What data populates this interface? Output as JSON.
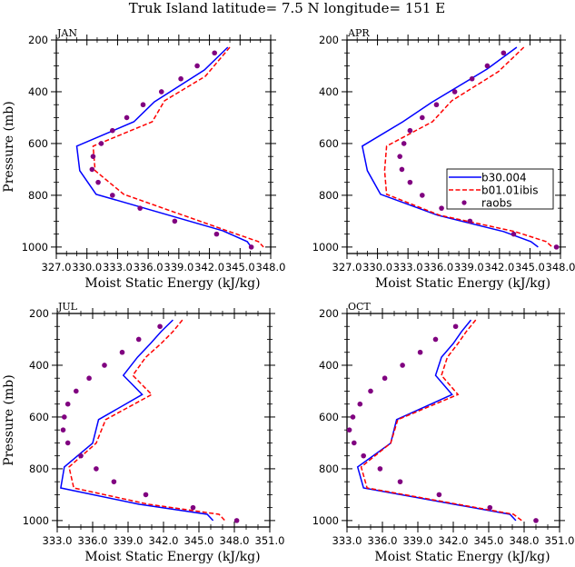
{
  "title": "Truk Island  latitude= 7.5 N longitude= 151 E",
  "colors": {
    "b30": "#0000ff",
    "b01": "#ff0000",
    "raobs": "#800080",
    "axis": "#000000"
  },
  "legend": {
    "placement": "right-middle of APR panel",
    "entries": [
      {
        "label": "b30.004",
        "style": "solid-line",
        "color": "#0000ff"
      },
      {
        "label": "b01.01ibis",
        "style": "dashed-line",
        "color": "#ff0000"
      },
      {
        "label": "raobs",
        "style": "dot",
        "color": "#800080"
      }
    ]
  },
  "chart_data": [
    {
      "type": "line",
      "panel": "JAN",
      "title": "JAN",
      "xlabel": "Moist Static Energy (kJ/kg)",
      "ylabel": "Pressure (mb)",
      "xlim": [
        327.0,
        348.0
      ],
      "xticks": [
        327.0,
        330.0,
        333.0,
        336.0,
        339.0,
        342.0,
        345.0,
        348.0
      ],
      "xtick_labels": [
        "327.0",
        "330.0",
        "333.0",
        "336.0",
        "339.0",
        "342.0",
        "345.0",
        "348.0"
      ],
      "ylim": [
        1025,
        200
      ],
      "yticks": [
        200,
        400,
        600,
        800,
        1000
      ],
      "ytick_labels": [
        "200",
        "400",
        "600",
        "800",
        "1000"
      ],
      "y_inverted": true,
      "series": [
        {
          "name": "b30.004",
          "style": "solid",
          "color": "#0000ff",
          "p": [
            228,
            316,
            439,
            516,
            610,
            705,
            796,
            937,
            979,
            1000
          ],
          "mse": [
            343.8,
            341.5,
            336.6,
            334.6,
            329.0,
            329.3,
            330.9,
            343.3,
            345.7,
            346.1
          ]
        },
        {
          "name": "b01.01ibis",
          "style": "dashed",
          "color": "#ff0000",
          "p": [
            228,
            340,
            435,
            516,
            610,
            705,
            796,
            937,
            979,
            1000
          ],
          "mse": [
            344.0,
            341.6,
            337.6,
            336.4,
            330.6,
            330.8,
            333.6,
            343.7,
            346.8,
            347.3
          ]
        },
        {
          "name": "raobs",
          "style": "dot",
          "color": "#800080",
          "p": [
            250,
            300,
            350,
            400,
            450,
            500,
            550,
            600,
            650,
            700,
            750,
            800,
            850,
            900,
            950,
            1000
          ],
          "mse": [
            342.5,
            340.8,
            339.2,
            337.3,
            335.5,
            333.9,
            332.5,
            331.4,
            330.6,
            330.5,
            331.1,
            332.5,
            335.2,
            338.6,
            342.7,
            346.1
          ]
        }
      ]
    },
    {
      "type": "line",
      "panel": "APR",
      "title": "APR",
      "xlabel": "Moist Static Energy (kJ/kg)",
      "ylabel": "",
      "xlim": [
        327.0,
        348.0
      ],
      "xticks": [
        327.0,
        330.0,
        333.0,
        336.0,
        339.0,
        342.0,
        345.0,
        348.0
      ],
      "xtick_labels": [
        "327.0",
        "330.0",
        "333.0",
        "336.0",
        "339.0",
        "342.0",
        "345.0",
        "348.0"
      ],
      "ylim": [
        1025,
        200
      ],
      "yticks": [
        200,
        400,
        600,
        800,
        1000
      ],
      "ytick_labels": [
        "200",
        "400",
        "600",
        "800",
        "1000"
      ],
      "y_inverted": true,
      "legend": true,
      "series": [
        {
          "name": "b30.004",
          "style": "solid",
          "color": "#0000ff",
          "p": [
            228,
            312,
            442,
            516,
            610,
            705,
            796,
            877,
            940,
            979,
            1000
          ],
          "mse": [
            343.7,
            340.8,
            335.3,
            332.5,
            328.5,
            329.0,
            330.3,
            335.9,
            342.4,
            345.1,
            345.8
          ]
        },
        {
          "name": "b01.01ibis",
          "style": "dashed",
          "color": "#ff0000",
          "p": [
            228,
            322,
            435,
            516,
            610,
            705,
            796,
            877,
            940,
            979,
            1000
          ],
          "mse": [
            344.4,
            341.9,
            337.3,
            335.4,
            330.9,
            330.7,
            330.9,
            336.1,
            343.5,
            346.6,
            347.2
          ]
        },
        {
          "name": "raobs",
          "style": "dot",
          "color": "#800080",
          "p": [
            250,
            300,
            350,
            400,
            450,
            500,
            550,
            600,
            650,
            700,
            750,
            800,
            850,
            900,
            950,
            1000
          ],
          "mse": [
            342.4,
            340.8,
            339.3,
            337.6,
            335.8,
            334.4,
            333.2,
            332.6,
            332.2,
            332.4,
            333.2,
            334.4,
            336.3,
            339.1,
            343.4,
            347.6
          ]
        }
      ]
    },
    {
      "type": "line",
      "panel": "JUL",
      "title": "JUL",
      "xlabel": "Moist Static Energy (kJ/kg)",
      "ylabel": "Pressure (mb)",
      "xlim": [
        333.0,
        351.0
      ],
      "xticks": [
        333.0,
        336.0,
        339.0,
        342.0,
        345.0,
        348.0,
        351.0
      ],
      "xtick_labels": [
        "333.0",
        "336.0",
        "339.0",
        "342.0",
        "345.0",
        "348.0",
        "351.0"
      ],
      "ylim": [
        1025,
        200
      ],
      "yticks": [
        200,
        400,
        600,
        800,
        1000
      ],
      "ytick_labels": [
        "200",
        "400",
        "600",
        "800",
        "1000"
      ],
      "y_inverted": true,
      "series": [
        {
          "name": "b30.004",
          "style": "solid",
          "color": "#0000ff",
          "p": [
            225,
            270,
            316,
            369,
            439,
            513,
            610,
            701,
            793,
            874,
            937,
            976,
            1000
          ],
          "mse": [
            342.8,
            341.8,
            340.9,
            339.8,
            338.6,
            340.2,
            336.5,
            336.0,
            333.6,
            333.3,
            339.9,
            345.7,
            346.2
          ]
        },
        {
          "name": "b01.01ibis",
          "style": "dashed",
          "color": "#ff0000",
          "p": [
            225,
            270,
            316,
            369,
            439,
            513,
            610,
            701,
            793,
            874,
            937,
            976,
            1000
          ],
          "mse": [
            343.6,
            342.8,
            341.8,
            340.5,
            339.4,
            341.0,
            337.1,
            336.3,
            334.0,
            334.4,
            340.7,
            346.7,
            347.2
          ]
        },
        {
          "name": "raobs",
          "style": "dot",
          "color": "#800080",
          "p": [
            250,
            300,
            350,
            400,
            450,
            500,
            550,
            600,
            650,
            700,
            750,
            800,
            850,
            900,
            950,
            1000
          ],
          "mse": [
            341.7,
            339.9,
            338.5,
            337.0,
            335.7,
            334.6,
            333.9,
            333.6,
            333.5,
            333.9,
            335.0,
            336.3,
            337.8,
            340.5,
            344.5,
            348.2
          ]
        }
      ]
    },
    {
      "type": "line",
      "panel": "OCT",
      "title": "OCT",
      "xlabel": "Moist Static Energy (kJ/kg)",
      "ylabel": "",
      "xlim": [
        333.0,
        351.0
      ],
      "xticks": [
        333.0,
        336.0,
        339.0,
        342.0,
        345.0,
        348.0,
        351.0
      ],
      "xtick_labels": [
        "333.0",
        "336.0",
        "339.0",
        "342.0",
        "345.0",
        "348.0",
        "351.0"
      ],
      "ylim": [
        1025,
        200
      ],
      "yticks": [
        200,
        400,
        600,
        800,
        1000
      ],
      "ytick_labels": [
        "200",
        "400",
        "600",
        "800",
        "1000"
      ],
      "y_inverted": true,
      "series": [
        {
          "name": "b30.004",
          "style": "solid",
          "color": "#0000ff",
          "p": [
            225,
            270,
            316,
            369,
            439,
            513,
            610,
            701,
            793,
            874,
            976,
            1000
          ],
          "mse": [
            343.5,
            342.7,
            342.0,
            341.0,
            340.5,
            341.9,
            337.2,
            336.7,
            333.9,
            334.4,
            346.8,
            347.3
          ]
        },
        {
          "name": "b01.01ibis",
          "style": "dashed",
          "color": "#ff0000",
          "p": [
            225,
            270,
            316,
            369,
            439,
            513,
            610,
            701,
            793,
            874,
            976,
            1000
          ],
          "mse": [
            343.9,
            343.1,
            342.4,
            341.5,
            341.0,
            342.4,
            337.3,
            336.7,
            334.2,
            334.7,
            347.1,
            347.8
          ]
        },
        {
          "name": "raobs",
          "style": "dot",
          "color": "#800080",
          "p": [
            250,
            300,
            350,
            400,
            450,
            500,
            550,
            600,
            650,
            700,
            750,
            800,
            850,
            900,
            950,
            1000
          ],
          "mse": [
            342.2,
            340.5,
            339.2,
            337.7,
            336.2,
            335.0,
            334.1,
            333.5,
            333.2,
            333.6,
            334.4,
            335.8,
            337.5,
            340.8,
            345.1,
            349.0
          ]
        }
      ]
    }
  ]
}
